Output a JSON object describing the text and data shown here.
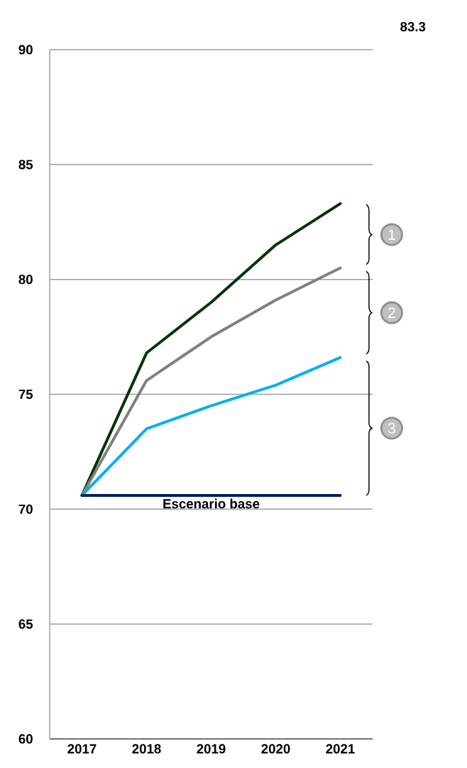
{
  "chart_data": {
    "type": "line",
    "categories": [
      "2017",
      "2018",
      "2019",
      "2020",
      "2021"
    ],
    "series": [
      {
        "color": "#003300",
        "values": [
          70.6,
          76.8,
          79.0,
          81.5,
          83.3
        ]
      },
      {
        "color": "#808080",
        "values": [
          70.6,
          75.6,
          77.5,
          79.1,
          80.5
        ]
      },
      {
        "color": "#00b0f0",
        "values": [
          70.6,
          73.5,
          74.5,
          75.4,
          76.6
        ]
      },
      {
        "name": "Escenario base",
        "color": "#002060",
        "values": [
          70.6,
          70.6,
          70.6,
          70.6,
          70.6
        ]
      }
    ],
    "ylim": [
      60,
      90
    ],
    "yticks": [
      60,
      65,
      70,
      75,
      80,
      85,
      90
    ],
    "grid": "y",
    "marker": "none",
    "line_style": "solid",
    "annotations": [
      "83.3",
      "1",
      "2",
      "3"
    ]
  }
}
